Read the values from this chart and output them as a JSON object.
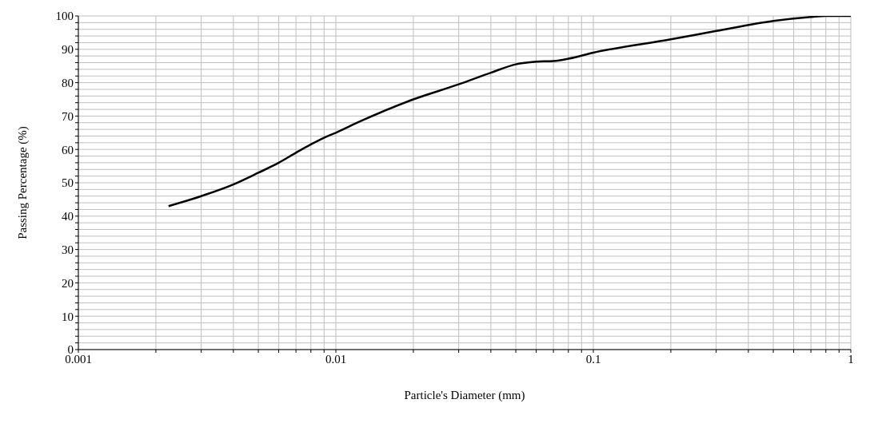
{
  "chart_data": {
    "type": "line",
    "xlabel": "Particle's Diameter (mm)",
    "ylabel": "Passing Percentage (%)",
    "log": "x",
    "grid": true,
    "marker": "none",
    "line_style": "solid",
    "legend": false,
    "series": [
      {
        "color": "#000000",
        "x": [
          0.00224,
          0.003,
          0.004,
          0.005,
          0.006,
          0.007,
          0.008,
          0.009,
          0.01,
          0.0125,
          0.02,
          0.03,
          0.04,
          0.05,
          0.06,
          0.07,
          0.08,
          0.1,
          0.2,
          0.3,
          0.5,
          0.7,
          0.8,
          1
        ],
        "values": [
          43,
          46,
          49.5,
          53,
          56,
          59,
          61.5,
          63.5,
          65,
          68.5,
          75,
          79.5,
          83,
          85.5,
          86.3,
          86.5,
          87.2,
          89,
          93,
          95.5,
          98.5,
          99.7,
          100,
          100
        ]
      }
    ],
    "xlim": [
      0.001,
      1
    ],
    "xticks": [
      0.001,
      {
        "value": 0.002,
        "label": null
      },
      {
        "value": 0.003,
        "label": null
      },
      {
        "value": 0.004,
        "label": null
      },
      {
        "value": 0.005,
        "label": null
      },
      {
        "value": 0.006,
        "label": null
      },
      {
        "value": 0.007,
        "label": null
      },
      {
        "value": 0.008,
        "label": null
      },
      {
        "value": 0.009,
        "label": null
      },
      0.01,
      {
        "value": 0.02,
        "label": null
      },
      {
        "value": 0.03,
        "label": null
      },
      {
        "value": 0.04,
        "label": null
      },
      {
        "value": 0.05,
        "label": null
      },
      {
        "value": 0.06,
        "label": null
      },
      {
        "value": 0.07,
        "label": null
      },
      {
        "value": 0.08,
        "label": null
      },
      {
        "value": 0.09,
        "label": null
      },
      0.1,
      {
        "value": 0.2,
        "label": null
      },
      {
        "value": 0.3,
        "label": null
      },
      {
        "value": 0.4,
        "label": null
      },
      {
        "value": 0.5,
        "label": null
      },
      {
        "value": 0.6,
        "label": null
      },
      {
        "value": 0.7,
        "label": null
      },
      {
        "value": 0.8,
        "label": null
      },
      {
        "value": 0.9,
        "label": null
      },
      1
    ],
    "ylim": [
      0,
      100
    ],
    "yticks": [
      0,
      {
        "value": 2,
        "label": null
      },
      {
        "value": 4,
        "label": null
      },
      {
        "value": 6,
        "label": null
      },
      {
        "value": 8,
        "label": null
      },
      10,
      {
        "value": 12,
        "label": null
      },
      {
        "value": 14,
        "label": null
      },
      {
        "value": 16,
        "label": null
      },
      {
        "value": 18,
        "label": null
      },
      20,
      {
        "value": 22,
        "label": null
      },
      {
        "value": 24,
        "label": null
      },
      {
        "value": 26,
        "label": null
      },
      {
        "value": 28,
        "label": null
      },
      30,
      {
        "value": 32,
        "label": null
      },
      {
        "value": 34,
        "label": null
      },
      {
        "value": 36,
        "label": null
      },
      {
        "value": 38,
        "label": null
      },
      40,
      {
        "value": 42,
        "label": null
      },
      {
        "value": 44,
        "label": null
      },
      {
        "value": 46,
        "label": null
      },
      {
        "value": 48,
        "label": null
      },
      50,
      {
        "value": 52,
        "label": null
      },
      {
        "value": 54,
        "label": null
      },
      {
        "value": 56,
        "label": null
      },
      {
        "value": 58,
        "label": null
      },
      60,
      {
        "value": 62,
        "label": null
      },
      {
        "value": 64,
        "label": null
      },
      {
        "value": 66,
        "label": null
      },
      {
        "value": 68,
        "label": null
      },
      70,
      {
        "value": 72,
        "label": null
      },
      {
        "value": 74,
        "label": null
      },
      {
        "value": 76,
        "label": null
      },
      {
        "value": 78,
        "label": null
      },
      80,
      {
        "value": 82,
        "label": null
      },
      {
        "value": 84,
        "label": null
      },
      {
        "value": 86,
        "label": null
      },
      {
        "value": 88,
        "label": null
      },
      90,
      {
        "value": 92,
        "label": null
      },
      {
        "value": 94,
        "label": null
      },
      {
        "value": 96,
        "label": null
      },
      {
        "value": 98,
        "label": null
      },
      100
    ]
  }
}
